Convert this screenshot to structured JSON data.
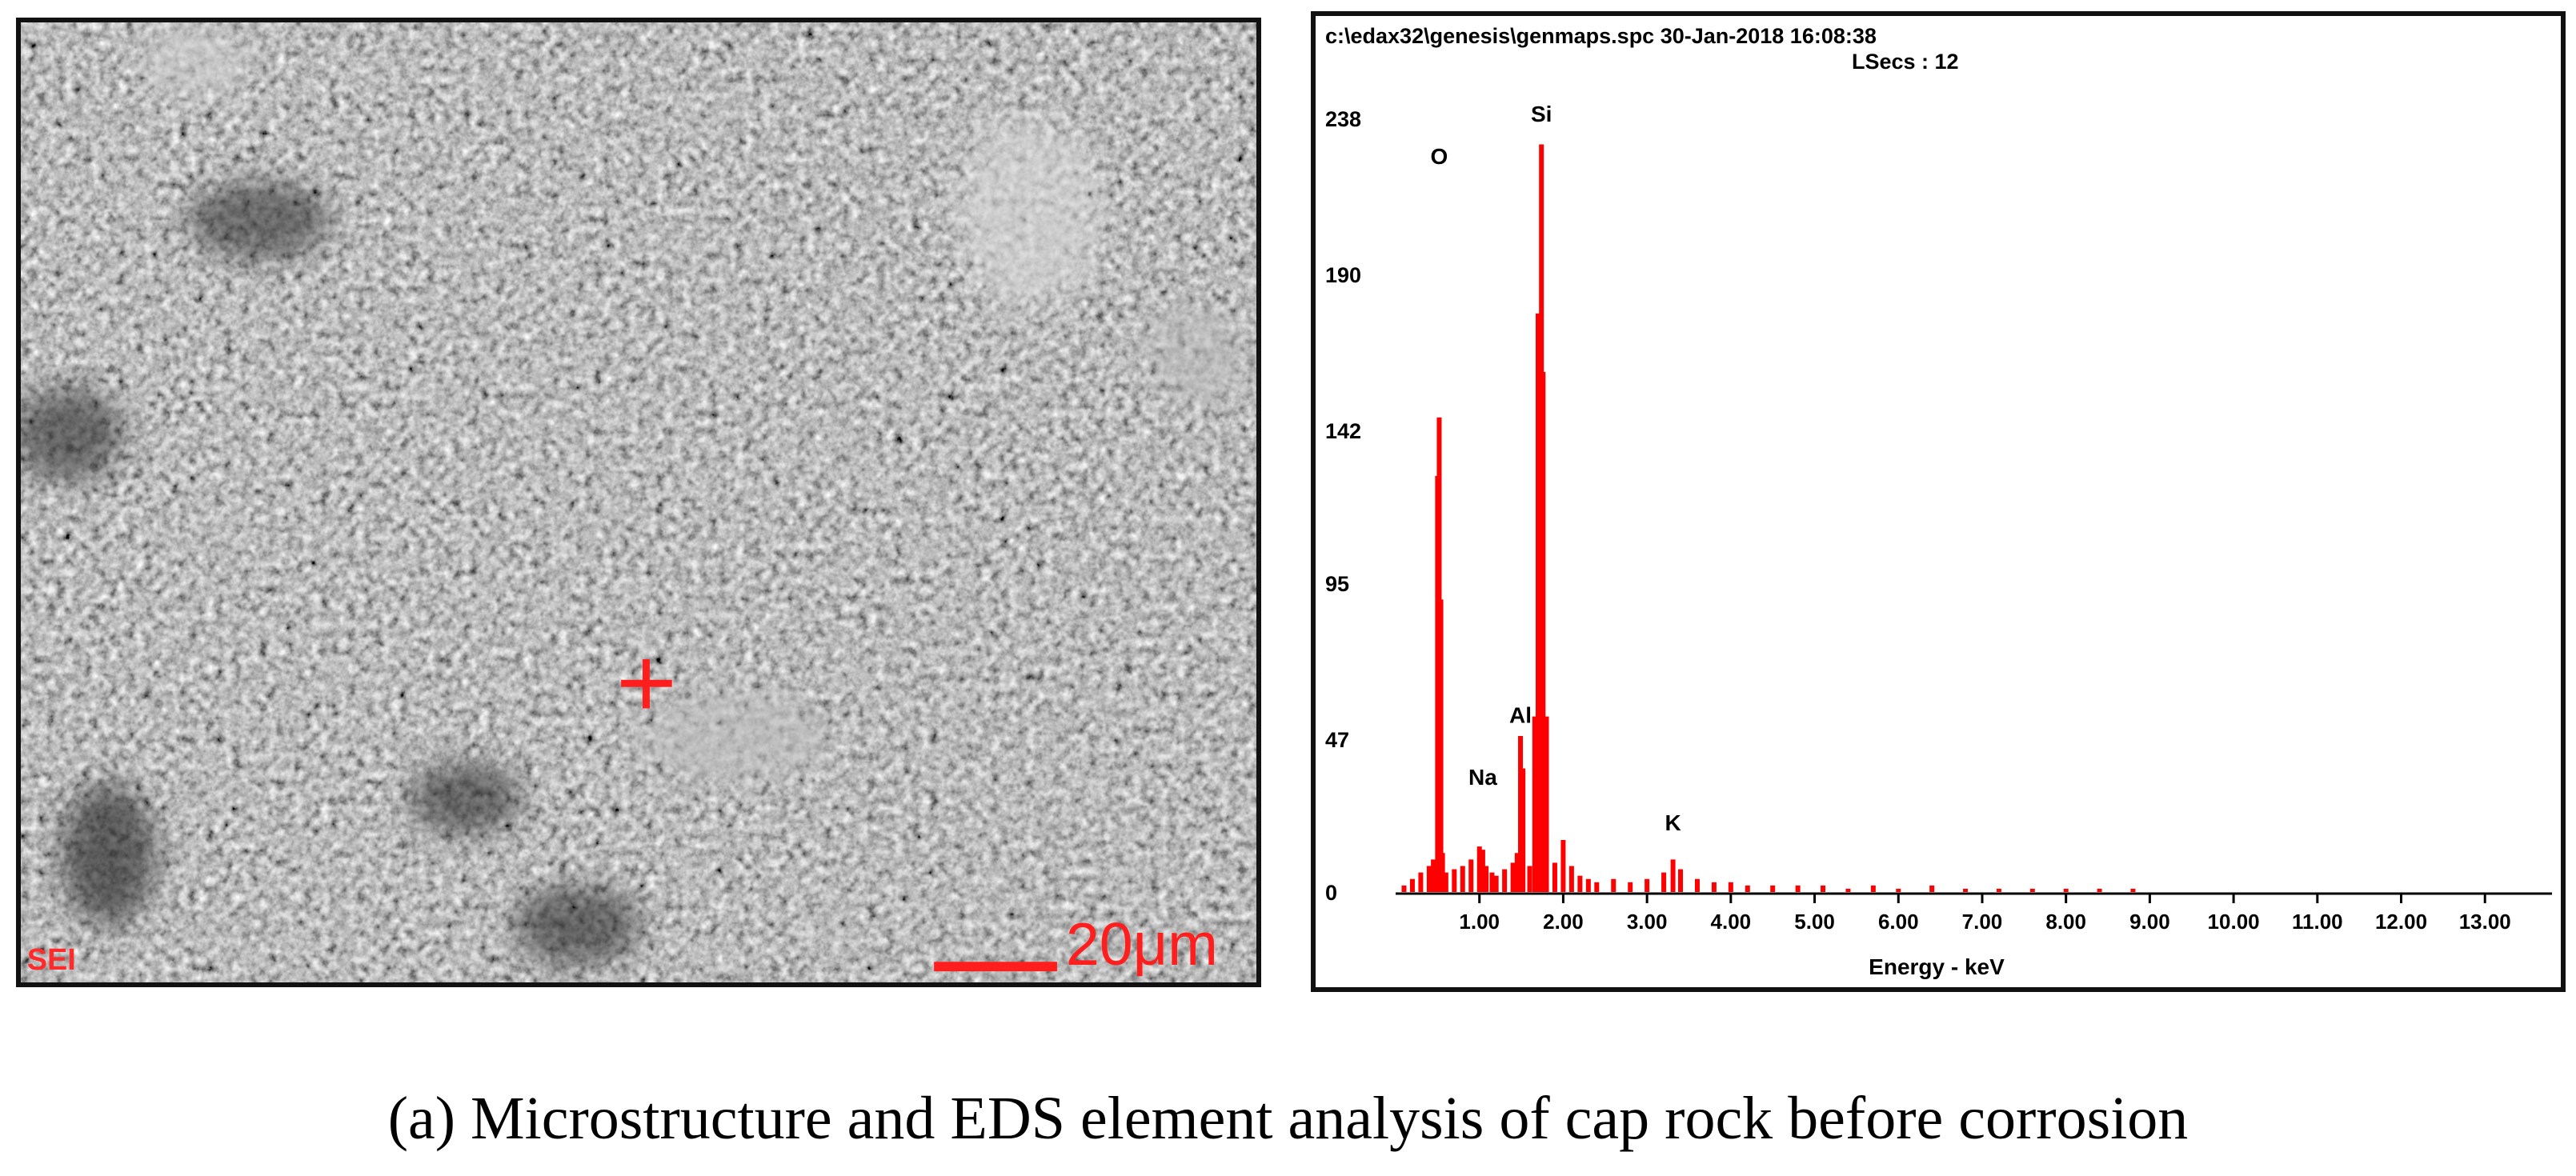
{
  "caption": "(a) Microstructure and EDS element analysis of cap rock before corrosion",
  "sem_image": {
    "detector_label": "SEI",
    "scale_bar_text": "20μm",
    "marker_color": "#ff1e1e"
  },
  "chart_data": {
    "type": "bar",
    "header_line1": "c:\\edax32\\genesis\\genmaps.spc  30-Jan-2018 16:08:38",
    "header_line2": "LSecs :  12",
    "xlabel": "Energy - keV",
    "ylabel": "",
    "xlim": [
      0,
      13.8
    ],
    "ylim": [
      0,
      238
    ],
    "xticks": [
      1,
      2,
      3,
      4,
      5,
      6,
      7,
      8,
      9,
      10,
      11,
      12,
      13
    ],
    "xtick_labels": [
      "1.00",
      "2.00",
      "3.00",
      "4.00",
      "5.00",
      "6.00",
      "7.00",
      "8.00",
      "9.00",
      "10.00",
      "11.00",
      "12.00",
      "13.00"
    ],
    "yticks": [
      0,
      47,
      95,
      142,
      190,
      238
    ],
    "ytick_labels": [
      "0",
      "47",
      "95",
      "142",
      "190",
      "238"
    ],
    "color": "#ff0000",
    "peak_labels": [
      {
        "element": "O",
        "x": 0.52,
        "y": 224
      },
      {
        "element": "Si",
        "x": 1.74,
        "y": 237
      },
      {
        "element": "Al",
        "x": 1.49,
        "y": 52
      },
      {
        "element": "Na",
        "x": 1.04,
        "y": 33
      },
      {
        "element": "K",
        "x": 3.31,
        "y": 19
      }
    ],
    "energy_kev": [
      0.1,
      0.2,
      0.3,
      0.4,
      0.45,
      0.5,
      0.52,
      0.54,
      0.56,
      0.6,
      0.7,
      0.8,
      0.9,
      1.0,
      1.04,
      1.08,
      1.15,
      1.2,
      1.3,
      1.4,
      1.45,
      1.49,
      1.52,
      1.6,
      1.66,
      1.7,
      1.74,
      1.76,
      1.8,
      1.9,
      2.0,
      2.1,
      2.2,
      2.3,
      2.4,
      2.6,
      2.8,
      3.0,
      3.2,
      3.31,
      3.4,
      3.6,
      3.8,
      4.0,
      4.2,
      4.5,
      4.8,
      5.1,
      5.4,
      5.7,
      6.0,
      6.4,
      6.8,
      7.2,
      7.6,
      8.0,
      8.4,
      8.8
    ],
    "counts": [
      2,
      4,
      6,
      8,
      10,
      128,
      146,
      90,
      12,
      6,
      7,
      8,
      10,
      14,
      13,
      8,
      6,
      5,
      7,
      9,
      12,
      48,
      38,
      8,
      54,
      178,
      230,
      160,
      54,
      9,
      16,
      8,
      5,
      4,
      3,
      4,
      3,
      4,
      6,
      10,
      7,
      4,
      3,
      3,
      2,
      2,
      2,
      2,
      1,
      2,
      1,
      2,
      1,
      1,
      1,
      1,
      1,
      1
    ]
  }
}
